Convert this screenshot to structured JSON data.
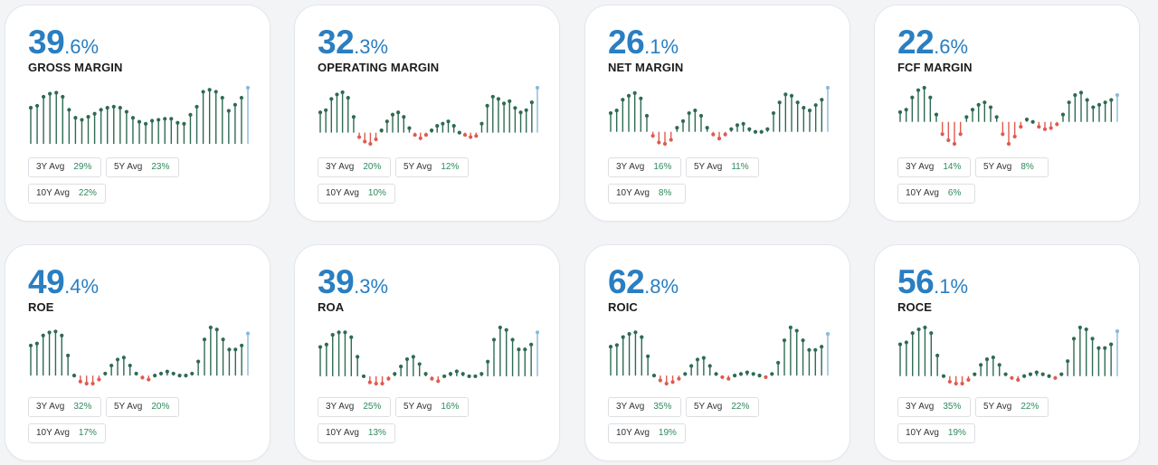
{
  "colors": {
    "value": "#2a7ec1",
    "positive": "#2e6b52",
    "negative": "#e05a50",
    "latest": "#8ab9dc",
    "avg_value": "#2e8a5d"
  },
  "cards": [
    {
      "int": "39",
      "dec": ".6%",
      "label": "GROSS MARGIN",
      "y3_label": "3Y Avg",
      "y3": "29%",
      "y5_label": "5Y Avg",
      "y5": "23%",
      "y10_label": "10Y Avg",
      "y10": "22%",
      "series": [
        36,
        38,
        47,
        50,
        51,
        47,
        34,
        26,
        24,
        27,
        30,
        34,
        36,
        37,
        36,
        32,
        26,
        22,
        20,
        23,
        24,
        25,
        25,
        21,
        20,
        29,
        37,
        52,
        54,
        52,
        46,
        33,
        39,
        46,
        56
      ]
    },
    {
      "int": "32",
      "dec": ".3%",
      "label": "OPERATING MARGIN",
      "y3_label": "3Y Avg",
      "y3": "20%",
      "y5_label": "5Y Avg",
      "y5": "12%",
      "y10_label": "10Y Avg",
      "y10": "10%",
      "series": [
        18,
        20,
        30,
        34,
        36,
        31,
        14,
        -4,
        -8,
        -10,
        -6,
        2,
        10,
        16,
        18,
        14,
        4,
        -2,
        -5,
        -2,
        2,
        6,
        8,
        10,
        6,
        0,
        -2,
        -4,
        -3,
        8,
        24,
        32,
        30,
        26,
        28,
        22,
        18,
        20,
        27,
        40
      ]
    },
    {
      "int": "26",
      "dec": ".1%",
      "label": "NET MARGIN",
      "y3_label": "3Y Avg",
      "y3": "16%",
      "y5_label": "5Y Avg",
      "y5": "11%",
      "y10_label": "10Y Avg",
      "y10": "8%",
      "series": [
        14,
        16,
        24,
        27,
        29,
        25,
        12,
        -3,
        -8,
        -9,
        -6,
        3,
        8,
        14,
        16,
        12,
        3,
        -2,
        -5,
        -2,
        2,
        5,
        6,
        2,
        0,
        0,
        2,
        14,
        22,
        28,
        27,
        22,
        18,
        16,
        20,
        24,
        33
      ]
    },
    {
      "int": "22",
      "dec": ".6%",
      "label": "FCF MARGIN",
      "y3_label": "3Y Avg",
      "y3": "14%",
      "y5_label": "5Y Avg",
      "y5": "8%",
      "y10_label": "10Y Avg",
      "y10": "6%",
      "series": [
        8,
        10,
        20,
        26,
        28,
        20,
        6,
        -10,
        -15,
        -18,
        -10,
        4,
        10,
        14,
        16,
        12,
        4,
        -10,
        -18,
        -12,
        -4,
        2,
        0,
        -4,
        -6,
        -5,
        -2,
        6,
        16,
        22,
        24,
        18,
        12,
        14,
        16,
        18,
        22
      ]
    },
    {
      "int": "49",
      "dec": ".4%",
      "label": "ROE",
      "y3_label": "3Y Avg",
      "y3": "32%",
      "y5_label": "5Y Avg",
      "y5": "20%",
      "y10_label": "10Y Avg",
      "y10": "17%",
      "series": [
        30,
        32,
        40,
        43,
        44,
        40,
        20,
        0,
        -6,
        -8,
        -8,
        -4,
        2,
        10,
        16,
        18,
        10,
        2,
        -2,
        -4,
        0,
        2,
        4,
        2,
        0,
        0,
        2,
        14,
        36,
        48,
        46,
        36,
        26,
        26,
        30,
        42
      ]
    },
    {
      "int": "39",
      "dec": ".3%",
      "label": "ROA",
      "y3_label": "3Y Avg",
      "y3": "25%",
      "y5_label": "5Y Avg",
      "y5": "16%",
      "y10_label": "10Y Avg",
      "y10": "13%",
      "series": [
        24,
        26,
        34,
        36,
        36,
        32,
        16,
        0,
        -5,
        -6,
        -6,
        -2,
        2,
        8,
        14,
        16,
        10,
        2,
        -2,
        -4,
        0,
        2,
        4,
        2,
        0,
        0,
        2,
        12,
        30,
        40,
        38,
        30,
        22,
        22,
        26,
        36
      ]
    },
    {
      "int": "62",
      "dec": ".8%",
      "label": "ROIC",
      "y3_label": "3Y Avg",
      "y3": "35%",
      "y5_label": "5Y Avg",
      "y5": "22%",
      "y10_label": "10Y Avg",
      "y10": "19%",
      "series": [
        36,
        38,
        48,
        52,
        54,
        48,
        24,
        0,
        -6,
        -10,
        -8,
        -4,
        2,
        12,
        20,
        22,
        12,
        2,
        -2,
        -4,
        0,
        2,
        4,
        2,
        0,
        -2,
        2,
        16,
        44,
        60,
        56,
        44,
        32,
        32,
        36,
        52
      ]
    },
    {
      "int": "56",
      "dec": ".1%",
      "label": "ROCE",
      "y3_label": "3Y Avg",
      "y3": "35%",
      "y5_label": "5Y Avg",
      "y5": "22%",
      "y10_label": "10Y Avg",
      "y10": "19%",
      "series": [
        34,
        36,
        46,
        50,
        52,
        46,
        22,
        0,
        -6,
        -8,
        -8,
        -4,
        2,
        12,
        18,
        20,
        12,
        2,
        -2,
        -4,
        0,
        2,
        4,
        2,
        0,
        -2,
        2,
        16,
        40,
        52,
        50,
        40,
        30,
        30,
        34,
        48
      ]
    }
  ]
}
